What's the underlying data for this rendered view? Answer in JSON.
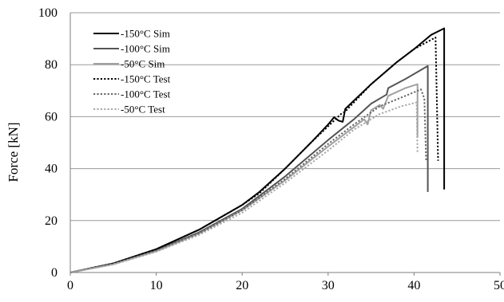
{
  "chart_data": {
    "type": "line",
    "title": "",
    "xlabel": "",
    "ylabel": "Force [kN]",
    "xlim": [
      0,
      50
    ],
    "ylim": [
      0,
      100
    ],
    "x_ticks": [
      0,
      10,
      20,
      30,
      40,
      50
    ],
    "y_ticks": [
      0,
      20,
      40,
      60,
      80,
      100
    ],
    "grid": "horizontal",
    "legend_position": "top-left",
    "series": [
      {
        "name": "-150°C Sim",
        "color": "#000000",
        "dash": "solid",
        "points": [
          [
            0,
            0
          ],
          [
            5,
            3.5
          ],
          [
            10,
            9
          ],
          [
            15,
            16.5
          ],
          [
            20,
            26
          ],
          [
            22,
            31
          ],
          [
            25,
            40
          ],
          [
            28,
            50
          ],
          [
            30,
            57
          ],
          [
            30.7,
            59.8
          ],
          [
            31.2,
            58.5
          ],
          [
            31.7,
            58
          ],
          [
            32,
            63
          ],
          [
            35,
            72.5
          ],
          [
            38,
            81
          ],
          [
            40,
            86
          ],
          [
            42,
            91.5
          ],
          [
            43.5,
            94
          ],
          [
            43.5,
            32
          ]
        ]
      },
      {
        "name": "-100°C Sim",
        "color": "#555555",
        "dash": "solid",
        "points": [
          [
            0,
            0
          ],
          [
            5,
            3.3
          ],
          [
            10,
            8.5
          ],
          [
            15,
            15.5
          ],
          [
            20,
            24.5
          ],
          [
            25,
            37
          ],
          [
            30,
            51
          ],
          [
            33,
            59
          ],
          [
            35,
            65
          ],
          [
            36.8,
            68.5
          ],
          [
            37,
            71
          ],
          [
            39,
            74.5
          ],
          [
            41.6,
            79.5
          ],
          [
            41.6,
            31
          ]
        ]
      },
      {
        "name": "-50°C Sim",
        "color": "#a0a0a0",
        "dash": "solid",
        "points": [
          [
            0,
            0
          ],
          [
            5,
            3.2
          ],
          [
            10,
            8.2
          ],
          [
            15,
            15
          ],
          [
            20,
            24
          ],
          [
            25,
            35.5
          ],
          [
            30,
            48.5
          ],
          [
            33,
            56
          ],
          [
            34.2,
            59
          ],
          [
            34.6,
            57
          ],
          [
            35,
            62.5
          ],
          [
            36,
            64.5
          ],
          [
            36.4,
            63
          ],
          [
            37,
            68
          ],
          [
            39,
            71
          ],
          [
            40.4,
            72.5
          ],
          [
            40.4,
            52
          ]
        ]
      },
      {
        "name": "-150°C Test",
        "color": "#000000",
        "dash": "dotted",
        "points": [
          [
            0,
            0
          ],
          [
            5,
            3.5
          ],
          [
            10,
            9
          ],
          [
            15,
            16.5
          ],
          [
            20,
            26
          ],
          [
            22,
            30.5
          ],
          [
            25,
            40
          ],
          [
            28,
            50
          ],
          [
            31.5,
            61
          ],
          [
            32,
            62
          ],
          [
            35,
            72.5
          ],
          [
            38,
            81
          ],
          [
            40,
            86
          ],
          [
            42.5,
            90.5
          ],
          [
            42.8,
            43
          ]
        ]
      },
      {
        "name": "-100°C Test",
        "color": "#666666",
        "dash": "dotted",
        "points": [
          [
            0,
            0
          ],
          [
            5,
            3.2
          ],
          [
            10,
            8.3
          ],
          [
            15,
            15
          ],
          [
            20,
            24
          ],
          [
            25,
            36
          ],
          [
            30,
            49.5
          ],
          [
            33,
            57
          ],
          [
            36,
            64
          ],
          [
            39,
            68
          ],
          [
            40.8,
            70.5
          ],
          [
            41.2,
            67
          ],
          [
            41.4,
            43
          ]
        ]
      },
      {
        "name": "-50°C Test",
        "color": "#a8a8a8",
        "dash": "dotted",
        "points": [
          [
            0,
            0
          ],
          [
            5,
            3.1
          ],
          [
            10,
            8
          ],
          [
            15,
            14.5
          ],
          [
            20,
            23
          ],
          [
            25,
            34.5
          ],
          [
            30,
            47
          ],
          [
            33,
            55
          ],
          [
            36,
            61
          ],
          [
            38.5,
            64
          ],
          [
            40.3,
            65.5
          ],
          [
            40.4,
            46
          ]
        ]
      }
    ]
  }
}
